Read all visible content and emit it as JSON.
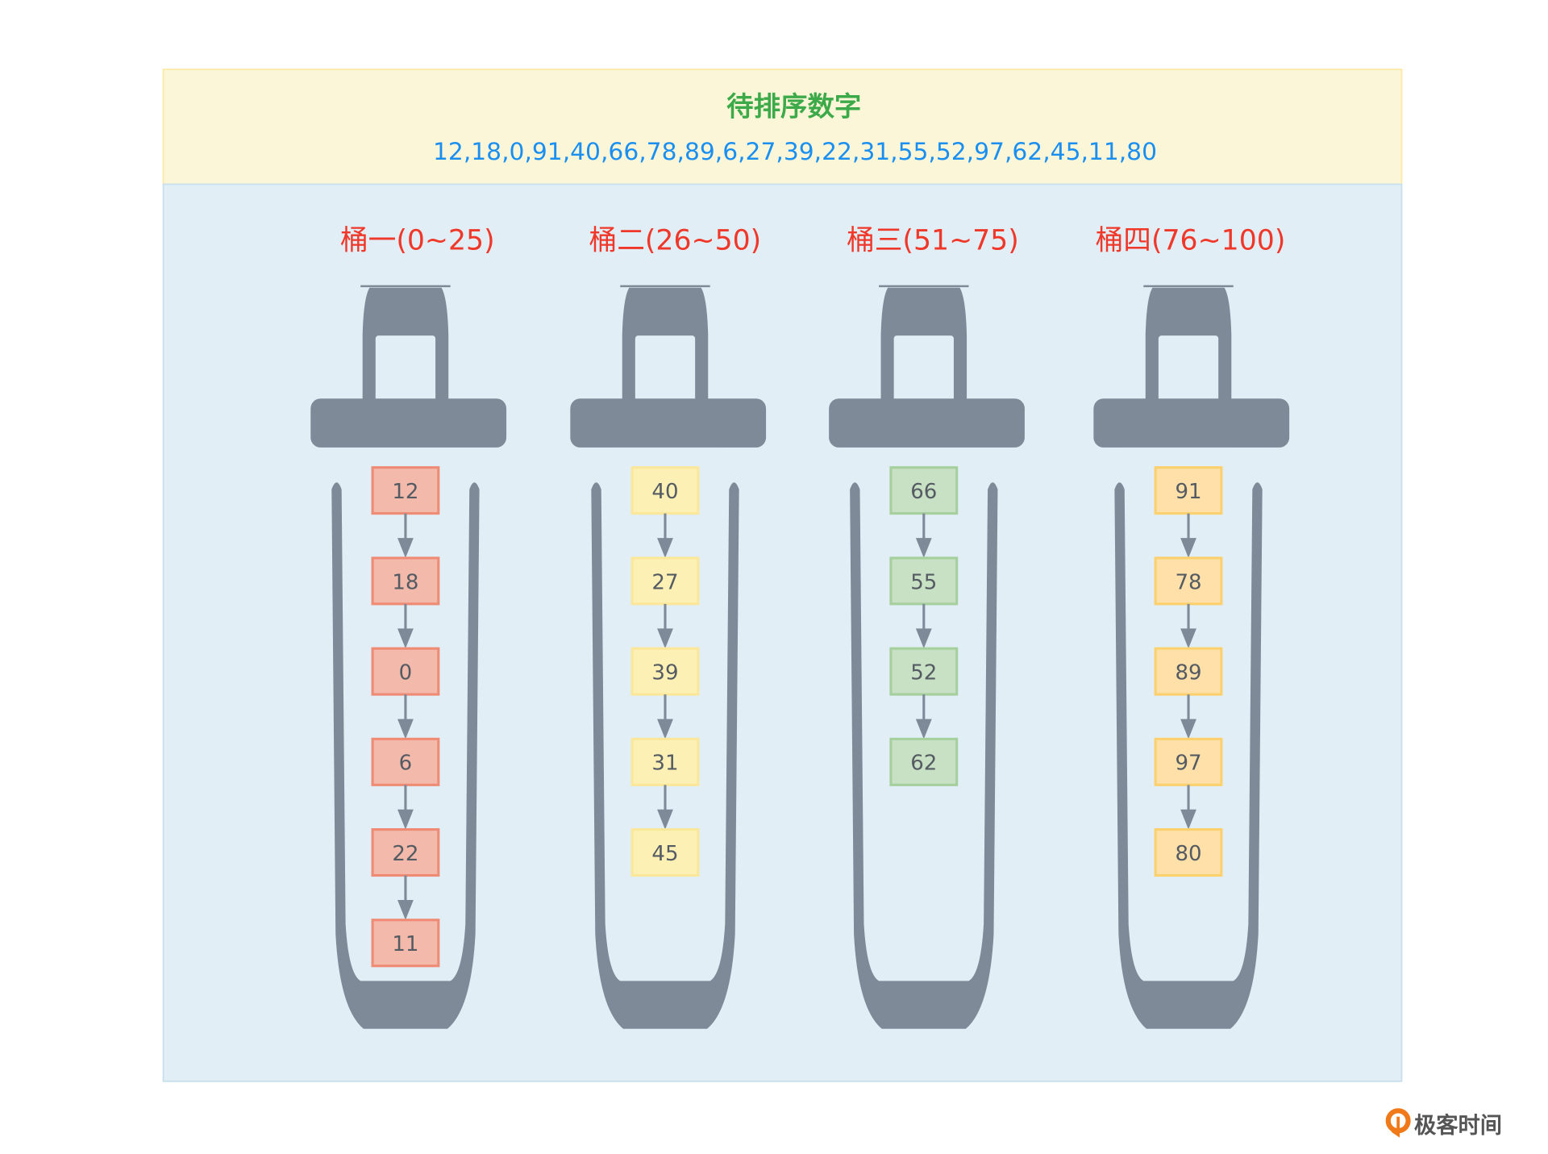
{
  "header": {
    "title": "待排序数字",
    "numbers": "12,18,0,91,40,66,78,89,6,27,39,22,31,55,52,97,62,45,11,80"
  },
  "buckets": [
    {
      "label": "桶一(0~25)",
      "items": [
        "12",
        "18",
        "0",
        "6",
        "22",
        "11"
      ],
      "fill": "#f3b9aa",
      "stroke": "#ef8b75"
    },
    {
      "label": "桶二(26~50)",
      "items": [
        "40",
        "27",
        "39",
        "31",
        "45"
      ],
      "fill": "#fdf0b5",
      "stroke": "#fbe79a"
    },
    {
      "label": "桶三(51~75)",
      "items": [
        "66",
        "55",
        "52",
        "62"
      ],
      "fill": "#c8e0c3",
      "stroke": "#a6cf9e"
    },
    {
      "label": "桶四(76~100)",
      "items": [
        "91",
        "78",
        "89",
        "97",
        "80"
      ],
      "fill": "#fee0a8",
      "stroke": "#fcd06d"
    }
  ],
  "colors": {
    "title": "#3daa49",
    "numbers": "#1a8ff0",
    "bucket_label": "#f0382a",
    "bucket_body": "#7f8a98",
    "header_bg": "#fcf6d8",
    "panel_bg": "#e1eef5"
  },
  "watermark": {
    "text": "极客时间",
    "icon": "geektime-logo-icon"
  }
}
